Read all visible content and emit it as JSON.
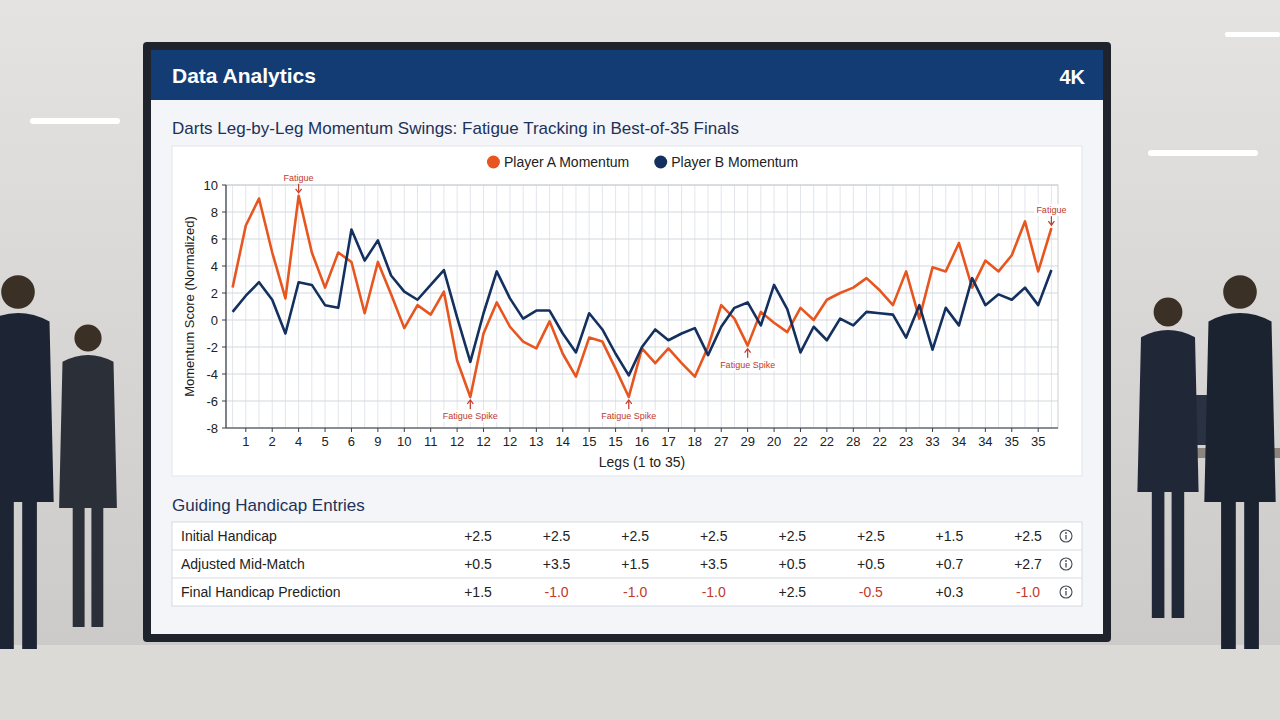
{
  "header": {
    "title": "Data Analytics",
    "badge": "4K"
  },
  "chart_data": {
    "type": "line",
    "title": "Darts Leg-by-Leg Momentum Swings: Fatigue Tracking in Best-of-35 Finals",
    "x_label": "Legs (1 to 35)",
    "y_label": "Momentum Score (Normalized)",
    "categories": [
      null,
      "1",
      null,
      "2",
      null,
      "4",
      null,
      "5",
      null,
      "6",
      null,
      "9",
      null,
      "10",
      null,
      "11",
      null,
      "12",
      null,
      "12",
      null,
      "12",
      null,
      "13",
      null,
      "14",
      null,
      "15",
      null,
      "15",
      null,
      "16",
      null,
      "17",
      null,
      "18",
      null,
      "27",
      null,
      "29",
      null,
      "20",
      null,
      "22",
      null,
      "22",
      null,
      "28",
      null,
      "22",
      null,
      "23",
      null,
      "33",
      null,
      "34",
      null,
      "34",
      null,
      "35",
      null,
      "35",
      null
    ],
    "series": [
      {
        "name": "Player A Momentum",
        "color": "#e8561f",
        "values": [
          2.4,
          7.0,
          9.0,
          5.0,
          1.6,
          9.2,
          5.0,
          2.4,
          5.0,
          4.3,
          0.5,
          4.3,
          1.9,
          -0.6,
          1.1,
          0.4,
          2.1,
          -3.0,
          -5.7,
          -1.0,
          1.3,
          -0.5,
          -1.6,
          -2.1,
          -0.1,
          -2.5,
          -4.2,
          -1.3,
          -1.6,
          -3.6,
          -5.7,
          -2.1,
          -3.2,
          -2.1,
          -3.2,
          -4.2,
          -2.0,
          1.1,
          0.1,
          -1.9,
          0.6,
          -0.2,
          -0.9,
          0.9,
          0.0,
          1.5,
          2.0,
          2.4,
          3.1,
          2.2,
          1.1,
          3.6,
          0.1,
          3.9,
          3.6,
          5.7,
          2.4,
          4.4,
          3.6,
          4.8,
          7.3,
          3.6,
          6.8
        ]
      },
      {
        "name": "Player B Momentum",
        "color": "#13305e",
        "values": [
          0.6,
          1.8,
          2.8,
          1.5,
          -1.0,
          2.8,
          2.6,
          1.1,
          0.9,
          6.7,
          4.4,
          5.9,
          3.3,
          2.1,
          1.5,
          2.6,
          3.7,
          0.2,
          -3.1,
          0.5,
          3.6,
          1.6,
          0.1,
          0.7,
          0.7,
          -1.0,
          -2.4,
          0.5,
          -0.7,
          -2.5,
          -4.1,
          -2.0,
          -0.7,
          -1.5,
          -1.0,
          -0.6,
          -2.6,
          -0.5,
          0.9,
          1.3,
          -0.4,
          2.6,
          0.8,
          -2.4,
          -0.5,
          -1.5,
          0.1,
          -0.4,
          0.6,
          0.5,
          0.4,
          -1.3,
          1.1,
          -2.2,
          0.9,
          -0.4,
          3.1,
          1.1,
          1.9,
          1.5,
          2.4,
          1.1,
          3.7
        ]
      }
    ],
    "ylim": [
      -8,
      10
    ],
    "yticks": [
      -8,
      -6,
      -4,
      -2,
      0,
      2,
      4,
      6,
      8,
      10
    ],
    "grid": true,
    "legend": "top",
    "annotations": [
      {
        "text": "Fatigue",
        "index": 5
      },
      {
        "text": "Fatigue Spike",
        "index": 18
      },
      {
        "text": "Fatigue Spike",
        "index": 30
      },
      {
        "text": "Fatigue Spike",
        "index": 39
      },
      {
        "text": "Fatigue",
        "index": 62
      }
    ]
  },
  "table": {
    "title": "Guiding Handicap Entries",
    "rows": [
      {
        "label": "Initial Handicap",
        "values": [
          "+2.5",
          "+2.5",
          "+2.5",
          "+2.5",
          "+2.5",
          "+2.5",
          "+1.5",
          "+2.5"
        ]
      },
      {
        "label": "Adjusted Mid-Match",
        "values": [
          "+0.5",
          "+3.5",
          "+1.5",
          "+3.5",
          "+0.5",
          "+0.5",
          "+0.7",
          "+2.7"
        ]
      },
      {
        "label": "Final Handicap Prediction",
        "values": [
          "+1.5",
          "-1.0",
          "-1.0",
          "-1.0",
          "+2.5",
          "-0.5",
          "+0.3",
          "-1.0"
        ]
      }
    ]
  }
}
